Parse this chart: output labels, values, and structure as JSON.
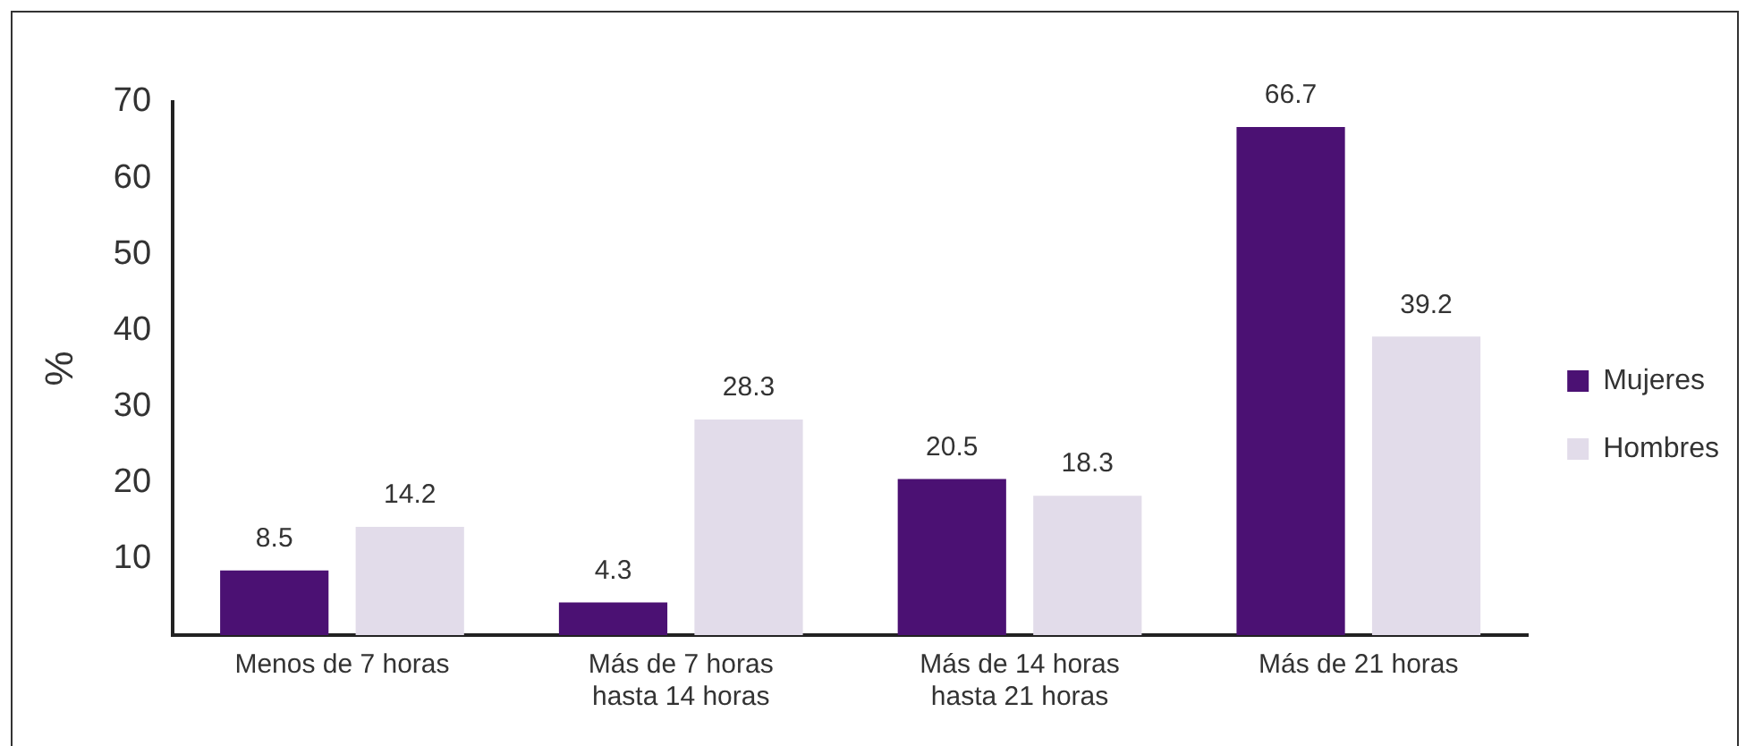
{
  "chart_data": {
    "type": "bar",
    "ylabel": "%",
    "categories": [
      "Menos de 7 horas",
      "Más de 7 horas\nhasta 14 horas",
      "Más de 14 horas\nhasta 21 horas",
      "Más de 21 horas"
    ],
    "series": [
      {
        "name": "Mujeres",
        "color": "#4b1173",
        "values": [
          8.5,
          4.3,
          20.5,
          66.7
        ]
      },
      {
        "name": "Hombres",
        "color": "#e2dcea",
        "values": [
          14.2,
          28.3,
          18.3,
          39.2
        ]
      }
    ],
    "ylim": [
      0,
      70
    ],
    "yticks": [
      10,
      20,
      30,
      40,
      50,
      60,
      70
    ],
    "grid": false,
    "legend": "right",
    "data_labels": true
  }
}
